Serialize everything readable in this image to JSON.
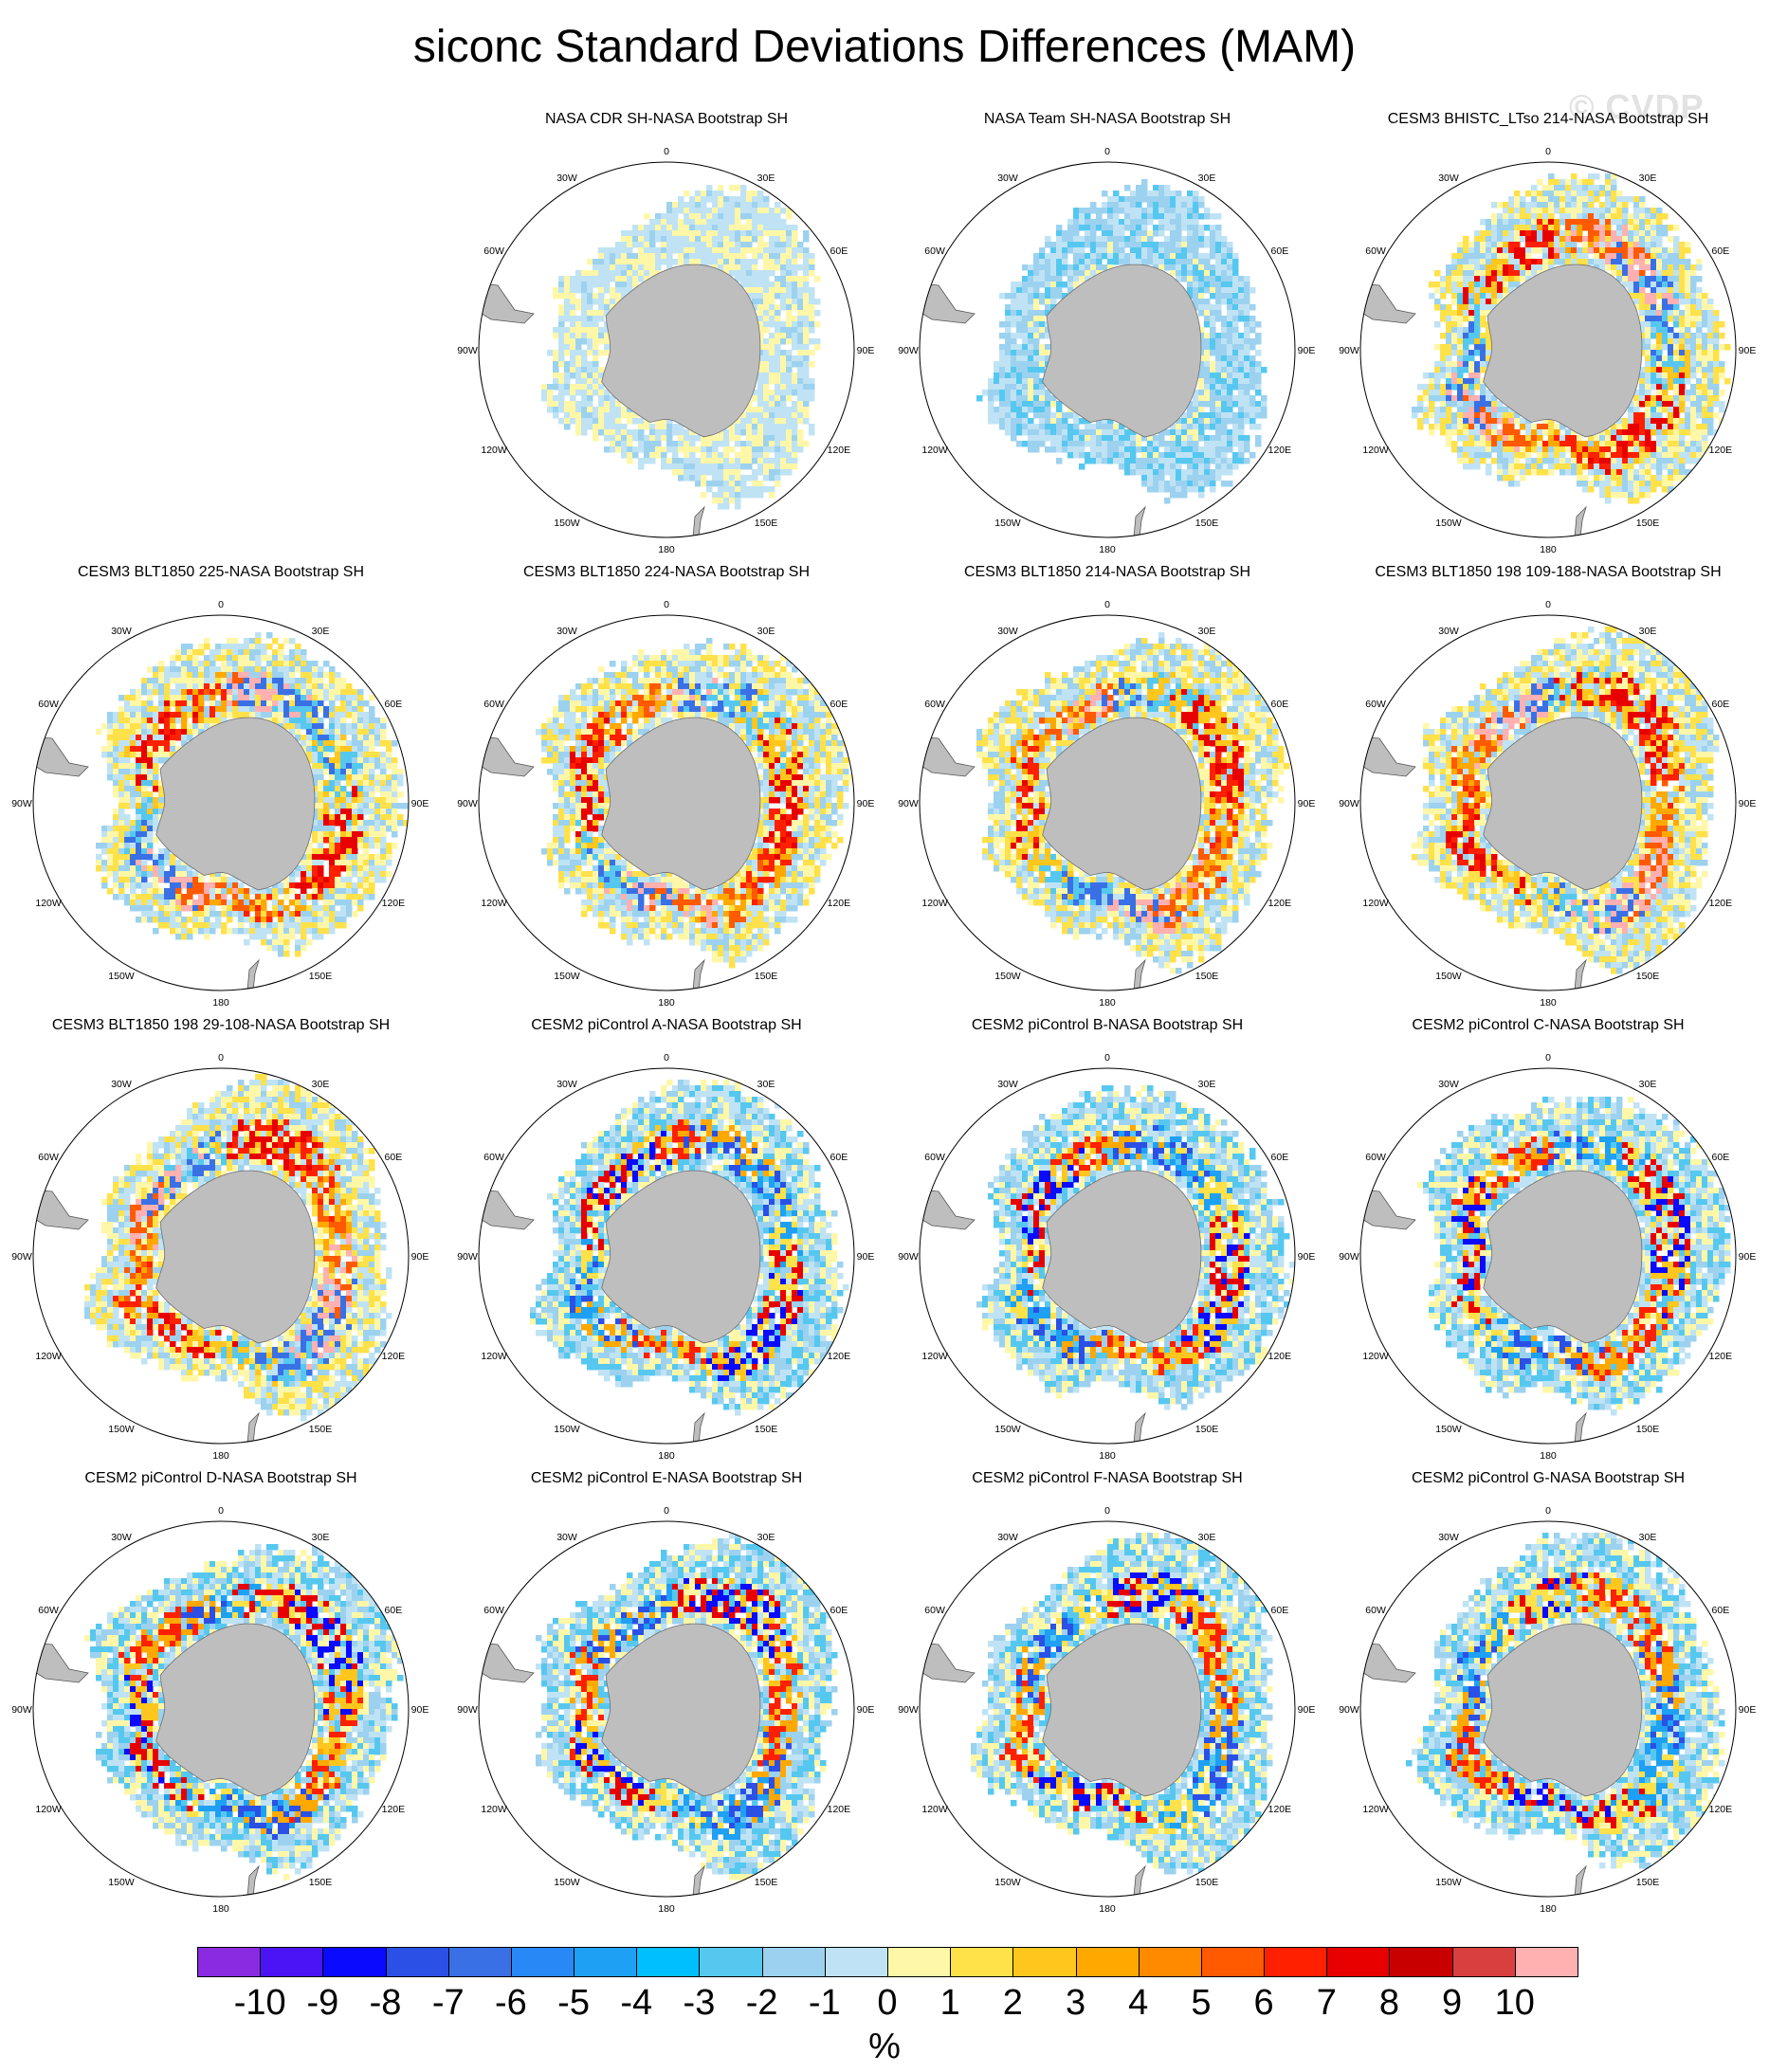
{
  "title": "siconc Standard Deviations Differences (MAM)",
  "watermark": "© CVDP",
  "lon_labels": [
    "0",
    "30E",
    "60E",
    "90E",
    "120E",
    "150E",
    "180",
    "150W",
    "120W",
    "90W",
    "60W",
    "30W"
  ],
  "panels": [
    {
      "title": "NASA CDR SH-NASA Bootstrap SH",
      "style": "obs_cdr"
    },
    {
      "title": "NASA Team SH-NASA Bootstrap SH",
      "style": "obs_team"
    },
    {
      "title": "CESM3 BHISTC_LTso 214-NASA Bootstrap SH",
      "style": "model_warm"
    },
    {
      "title": "CESM3 BLT1850 225-NASA Bootstrap SH",
      "style": "model_warm"
    },
    {
      "title": "CESM3 BLT1850 224-NASA Bootstrap SH",
      "style": "model_warm"
    },
    {
      "title": "CESM3 BLT1850 214-NASA Bootstrap SH",
      "style": "model_warm"
    },
    {
      "title": "CESM3 BLT1850 198 109-188-NASA Bootstrap SH",
      "style": "model_warm"
    },
    {
      "title": "CESM3 BLT1850 198 29-108-NASA Bootstrap SH",
      "style": "model_warm"
    },
    {
      "title": "CESM2 piControl A-NASA Bootstrap SH",
      "style": "model_mixed"
    },
    {
      "title": "CESM2 piControl B-NASA Bootstrap SH",
      "style": "model_mixed"
    },
    {
      "title": "CESM2 piControl C-NASA Bootstrap SH",
      "style": "model_mixed"
    },
    {
      "title": "CESM2 piControl D-NASA Bootstrap SH",
      "style": "model_mixed"
    },
    {
      "title": "CESM2 piControl E-NASA Bootstrap SH",
      "style": "model_mixed"
    },
    {
      "title": "CESM2 piControl F-NASA Bootstrap SH",
      "style": "model_mixed"
    },
    {
      "title": "CESM2 piControl G-NASA Bootstrap SH",
      "style": "model_mixed"
    }
  ],
  "colorbar": {
    "units": "%",
    "labels": [
      "-10",
      "-9",
      "-8",
      "-7",
      "-6",
      "-5",
      "-4",
      "-3",
      "-2",
      "-1",
      "0",
      "1",
      "2",
      "3",
      "4",
      "5",
      "6",
      "7",
      "8",
      "9",
      "10"
    ],
    "colors": [
      "#8a2be2",
      "#4b14f5",
      "#0a0aff",
      "#2b50e6",
      "#3a70e6",
      "#2888f5",
      "#1ea0f5",
      "#00bfff",
      "#56c8f0",
      "#9cd2ef",
      "#bfe3f4",
      "#fff7a8",
      "#ffe14a",
      "#ffc61e",
      "#ffa800",
      "#ff8a00",
      "#ff5a00",
      "#ff2000",
      "#e80000",
      "#c80000",
      "#d84040",
      "#ffb0b0"
    ]
  }
}
